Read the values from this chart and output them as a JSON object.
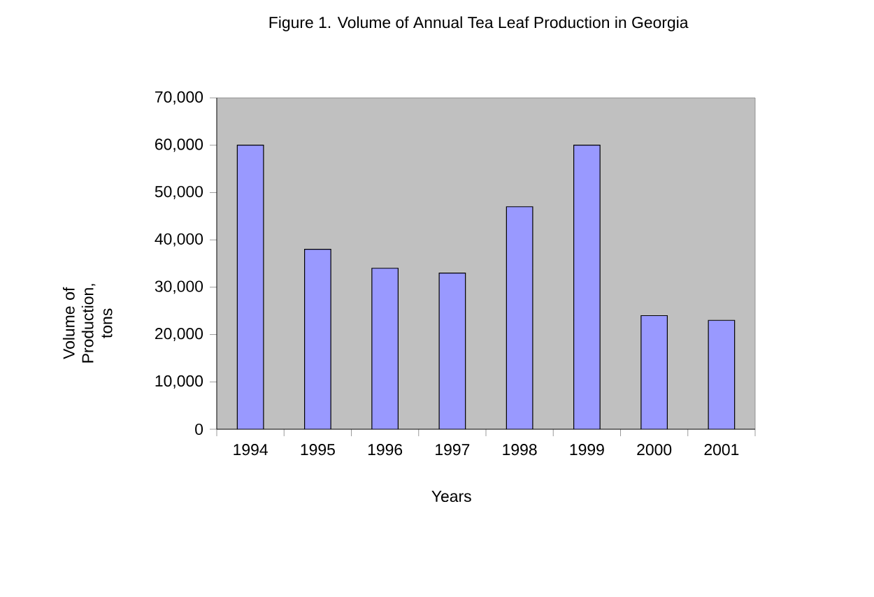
{
  "chart_data": {
    "type": "bar",
    "title": "Figure 1. Volume of Annual Tea Leaf Production in Georgia",
    "xlabel": "Years",
    "ylabel": "Volume of Production, tons",
    "categories": [
      "1994",
      "1995",
      "1996",
      "1997",
      "1998",
      "1999",
      "2000",
      "2001"
    ],
    "values": [
      60000,
      38000,
      34000,
      33000,
      47000,
      60000,
      24000,
      23000
    ],
    "color": "#9999ff",
    "ylim": [
      0,
      70000
    ],
    "yticks": [
      0,
      {
        "value": 10000,
        "label": "10,000"
      },
      {
        "value": 20000,
        "label": "20,000"
      },
      {
        "value": 30000,
        "label": "30,000"
      },
      {
        "value": 40000,
        "label": "40,000"
      },
      {
        "value": 50000,
        "label": "50,000"
      },
      {
        "value": 60000,
        "label": "60,000"
      },
      {
        "value": 70000,
        "label": "70,000"
      }
    ]
  }
}
